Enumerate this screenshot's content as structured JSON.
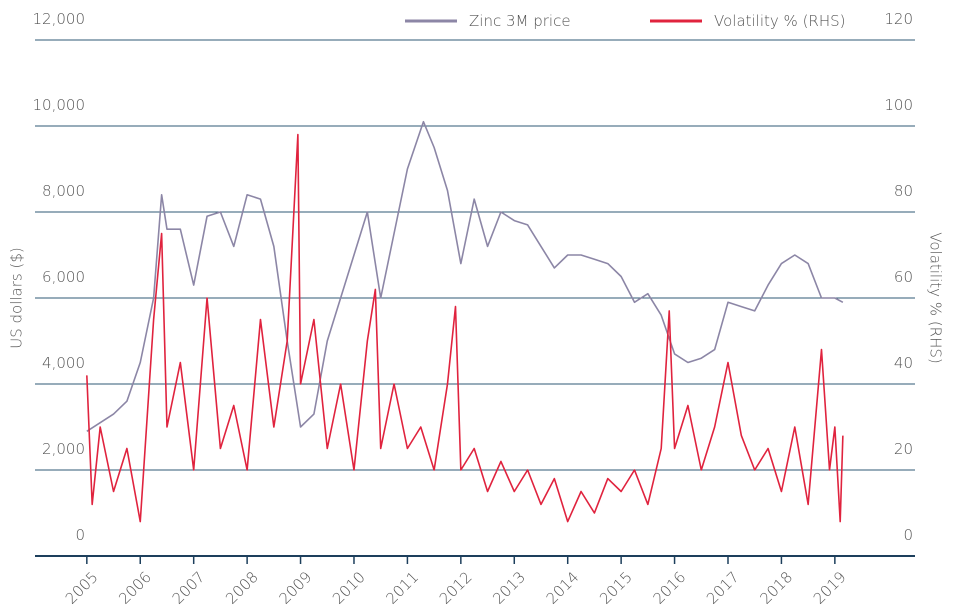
{
  "chart_data": {
    "type": "line",
    "y_label": "US dollars ($)",
    "y2_label": "Volatility % (RHS)",
    "xlim": [
      2004.03,
      2020.5
    ],
    "xticks": [
      2005,
      2006,
      2007,
      2008,
      2009,
      2010,
      2011,
      2012,
      2013,
      2014,
      2015,
      2016,
      2017,
      2018,
      2019
    ],
    "ylim": [
      0,
      12000
    ],
    "yticks": [
      0,
      {
        "value": 2000,
        "label": "2,000"
      },
      {
        "value": 4000,
        "label": "4,000"
      },
      {
        "value": 6000,
        "label": "6,000"
      },
      {
        "value": 8000,
        "label": "8,000"
      },
      {
        "value": 10000,
        "label": "10,000"
      },
      {
        "value": 12000,
        "label": "12,000"
      }
    ],
    "y2lim": [
      0,
      120
    ],
    "y2ticks": [
      0,
      20,
      40,
      60,
      80,
      100,
      120
    ],
    "grid": true,
    "legend": "top",
    "series": [
      {
        "name": "Zinc 3M price",
        "color": "#8c86a6",
        "x": [
          2005.0,
          2005.25,
          2005.5,
          2005.75,
          2006.0,
          2006.25,
          2006.4,
          2006.5,
          2006.75,
          2007.0,
          2007.25,
          2007.5,
          2007.75,
          2008.0,
          2008.25,
          2008.5,
          2008.75,
          2009.0,
          2009.25,
          2009.5,
          2009.75,
          2010.0,
          2010.25,
          2010.5,
          2010.75,
          2011.0,
          2011.3,
          2011.5,
          2011.75,
          2012.0,
          2012.25,
          2012.5,
          2012.75,
          2013.0,
          2013.25,
          2013.5,
          2013.75,
          2014.0,
          2014.25,
          2014.5,
          2014.75,
          2015.0,
          2015.25,
          2015.5,
          2015.75,
          2016.0,
          2016.25,
          2016.5,
          2016.75,
          2017.0,
          2017.25,
          2017.5,
          2017.75,
          2018.0,
          2018.25,
          2018.5,
          2018.75,
          2019.0,
          2019.15
        ],
        "values": [
          2900,
          3100,
          3300,
          3600,
          4500,
          6000,
          8400,
          7600,
          7600,
          6300,
          7900,
          8000,
          7200,
          8400,
          8300,
          7200,
          5000,
          3000,
          3300,
          5000,
          6000,
          7000,
          8000,
          6000,
          7500,
          9000,
          10100,
          9500,
          8500,
          6800,
          8300,
          7200,
          8000,
          7800,
          7700,
          7200,
          6700,
          7000,
          7000,
          6900,
          6800,
          6500,
          5900,
          6100,
          5600,
          4700,
          4500,
          4600,
          4800,
          5900,
          5800,
          5700,
          6300,
          6800,
          7000,
          6800,
          6000,
          6000,
          5900
        ]
      },
      {
        "name": "Volatility % (RHS)",
        "color": "#e0233e",
        "axis": "y2",
        "x": [
          2005.0,
          2005.1,
          2005.25,
          2005.5,
          2005.75,
          2006.0,
          2006.25,
          2006.4,
          2006.5,
          2006.75,
          2007.0,
          2007.25,
          2007.5,
          2007.75,
          2008.0,
          2008.25,
          2008.5,
          2008.75,
          2008.95,
          2009.0,
          2009.25,
          2009.5,
          2009.75,
          2010.0,
          2010.25,
          2010.4,
          2010.5,
          2010.75,
          2011.0,
          2011.25,
          2011.5,
          2011.75,
          2011.9,
          2012.0,
          2012.25,
          2012.5,
          2012.75,
          2013.0,
          2013.25,
          2013.5,
          2013.75,
          2014.0,
          2014.25,
          2014.5,
          2014.75,
          2015.0,
          2015.25,
          2015.5,
          2015.75,
          2015.9,
          2016.0,
          2016.25,
          2016.5,
          2016.75,
          2017.0,
          2017.25,
          2017.5,
          2017.75,
          2018.0,
          2018.25,
          2018.5,
          2018.75,
          2018.9,
          2019.0,
          2019.1,
          2019.15
        ],
        "values": [
          42,
          12,
          30,
          15,
          25,
          8,
          55,
          75,
          30,
          45,
          20,
          60,
          25,
          35,
          20,
          55,
          30,
          50,
          98,
          40,
          55,
          25,
          40,
          20,
          50,
          62,
          25,
          40,
          25,
          30,
          20,
          40,
          58,
          20,
          25,
          15,
          22,
          15,
          20,
          12,
          18,
          8,
          15,
          10,
          18,
          15,
          20,
          12,
          25,
          57,
          25,
          35,
          20,
          30,
          45,
          28,
          20,
          25,
          15,
          30,
          12,
          48,
          20,
          30,
          8,
          28
        ]
      }
    ]
  }
}
